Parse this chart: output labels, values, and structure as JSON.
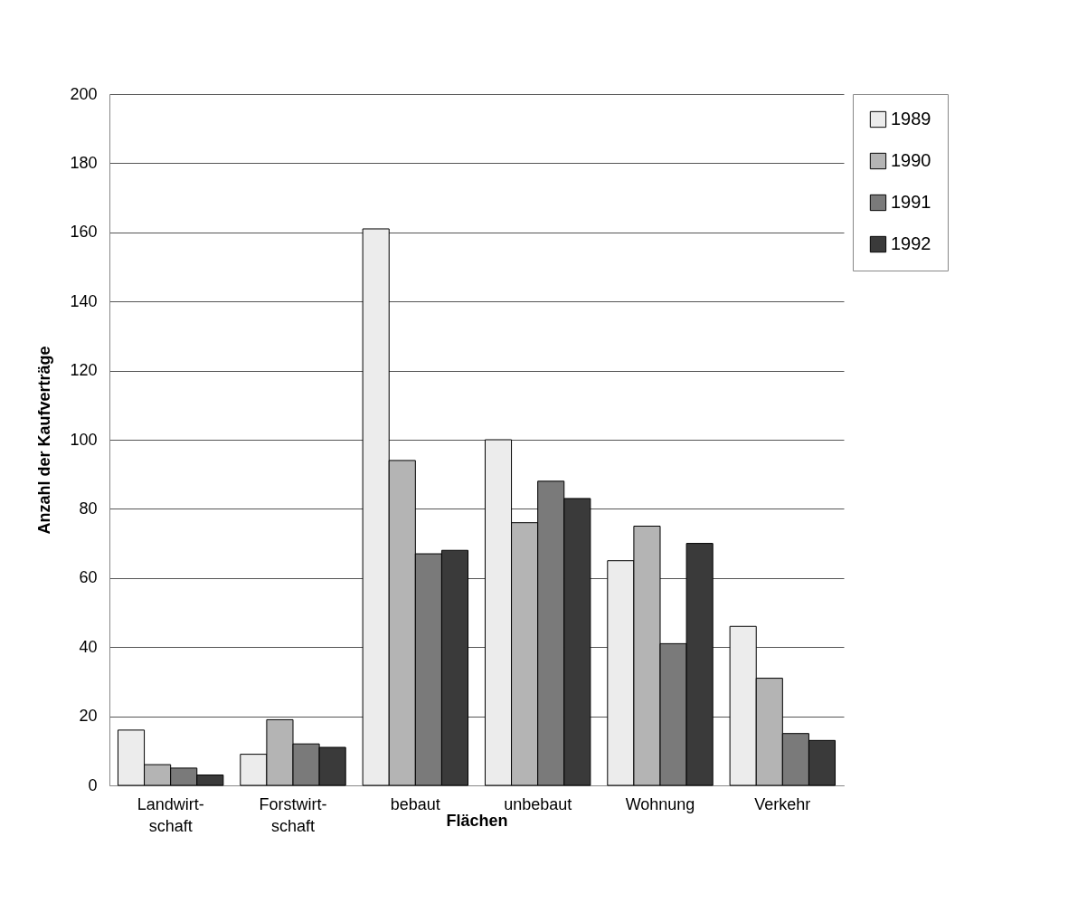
{
  "chart_data": {
    "type": "bar",
    "xlabel": "Flächen",
    "ylabel": "Anzahl der Kaufverträge",
    "categories": [
      "Landwirt-\nschaft",
      "Forstwirt-\nschaft",
      "bebaut",
      "unbebaut",
      "Wohnung",
      "Verkehr"
    ],
    "series": [
      {
        "name": "1989",
        "color": "#ececec",
        "values": [
          16,
          9,
          161,
          100,
          65,
          46
        ]
      },
      {
        "name": "1990",
        "color": "#b4b4b4",
        "values": [
          6,
          19,
          94,
          76,
          75,
          31
        ]
      },
      {
        "name": "1991",
        "color": "#7a7a7a",
        "values": [
          5,
          12,
          67,
          88,
          41,
          15
        ]
      },
      {
        "name": "1992",
        "color": "#3a3a3a",
        "values": [
          3,
          11,
          68,
          83,
          70,
          13
        ]
      }
    ],
    "ylim": [
      0,
      200
    ],
    "yticks": [
      0,
      20,
      40,
      60,
      80,
      100,
      120,
      140,
      160,
      180,
      200
    ],
    "grid": "y",
    "legend": "right"
  }
}
